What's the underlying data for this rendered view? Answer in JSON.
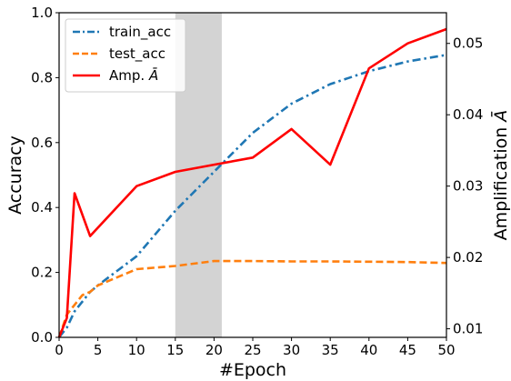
{
  "chart_data": {
    "type": "line",
    "xlabel": "#Epoch",
    "ylabel_left": "Accuracy",
    "ylabel_right": "Amplification $\\bar{A}$",
    "xlim": [
      0,
      50
    ],
    "ylim_left": [
      0.0,
      1.0
    ],
    "ylim_right": [
      0.0088,
      0.0543
    ],
    "xticks": [
      0,
      5,
      10,
      15,
      20,
      25,
      30,
      35,
      40,
      45,
      50
    ],
    "yticks_left": [
      "0.0",
      "0.2",
      "0.4",
      "0.6",
      "0.8",
      "1.0"
    ],
    "yticks_left_values": [
      0.0,
      0.2,
      0.4,
      0.6,
      0.8,
      1.0
    ],
    "yticks_right": [
      "0.01",
      "0.02",
      "0.03",
      "0.04",
      "0.05"
    ],
    "yticks_right_values": [
      0.01,
      0.02,
      0.03,
      0.04,
      0.05
    ],
    "shaded_region": {
      "x_start": 15,
      "x_end": 21,
      "color": "#d3d3d3"
    },
    "legend_position": "top-left",
    "series": [
      {
        "name": "train_acc",
        "axis": "left",
        "color": "#1f77b4",
        "style": "dashdot",
        "x": [
          0,
          1,
          2,
          3,
          4,
          5,
          10,
          15,
          20,
          25,
          30,
          35,
          40,
          45,
          50
        ],
        "y": [
          0.0,
          0.03,
          0.08,
          0.11,
          0.14,
          0.16,
          0.25,
          0.39,
          0.51,
          0.63,
          0.72,
          0.78,
          0.82,
          0.85,
          0.87
        ]
      },
      {
        "name": "test_acc",
        "axis": "left",
        "color": "#ff7f0e",
        "style": "dashed",
        "x": [
          0,
          1,
          2,
          3,
          4,
          5,
          10,
          15,
          20,
          25,
          30,
          35,
          40,
          45,
          50
        ],
        "y": [
          0.0,
          0.07,
          0.1,
          0.13,
          0.14,
          0.16,
          0.21,
          0.22,
          0.235,
          0.235,
          0.234,
          0.234,
          0.233,
          0.232,
          0.229
        ]
      },
      {
        "name": "Amp. $\\bar{A}$",
        "axis": "right",
        "color": "#ff0000",
        "style": "solid",
        "x": [
          0,
          1,
          2,
          4,
          10,
          15,
          20,
          25,
          30,
          35,
          40,
          45,
          50
        ],
        "y": [
          0.0088,
          0.0115,
          0.029,
          0.023,
          0.03,
          0.032,
          0.033,
          0.034,
          0.038,
          0.033,
          0.0465,
          0.05,
          0.052
        ]
      }
    ]
  }
}
